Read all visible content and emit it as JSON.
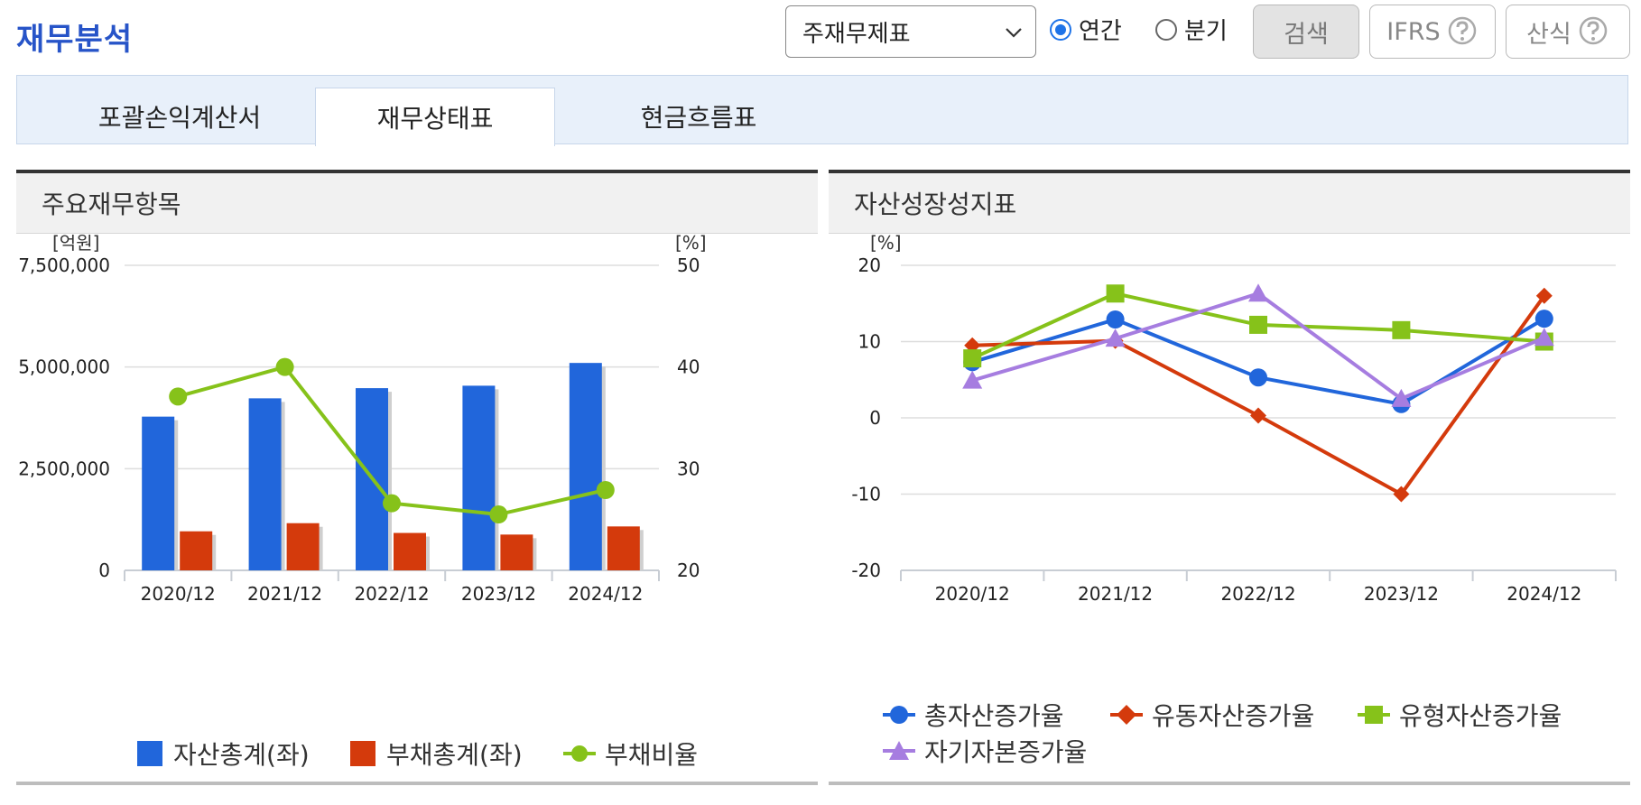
{
  "header": {
    "title": "재무분석",
    "report_select": "주재무제표",
    "radio_annual": "연간",
    "radio_quarter": "분기",
    "search_button": "검색",
    "ifrs_button": "IFRS",
    "formula_button": "산식"
  },
  "tabs": [
    "포괄손익계산서",
    "재무상태표",
    "현금흐름표"
  ],
  "left_panel": {
    "title": "주요재무항목",
    "left_unit": "[억원]",
    "right_unit": "[%]",
    "legend": [
      "자산총계(좌)",
      "부채총계(좌)",
      "부채비율"
    ]
  },
  "right_panel": {
    "title": "자산성장성지표",
    "unit": "[%]",
    "legend": [
      "총자산증가율",
      "유동자산증가율",
      "유형자산증가율",
      "자기자본증가율"
    ]
  },
  "colors": {
    "brand": "#2754c8",
    "asset_bar": "#2166db",
    "liability_bar": "#d43a0c",
    "debt_ratio": "#86c21a",
    "total_asset_growth": "#2166db",
    "current_asset_growth": "#d43a0c",
    "tangible_asset_growth": "#86c21a",
    "equity_growth": "#a67de0"
  },
  "chart_data": [
    {
      "type": "bar",
      "title": "주요재무항목",
      "categories": [
        "2020/12",
        "2021/12",
        "2022/12",
        "2023/12",
        "2024/12"
      ],
      "y_left_ticks": [
        "0",
        "2,500,000",
        "5,000,000",
        "7,500,000"
      ],
      "y_right_ticks": [
        "20",
        "30",
        "40",
        "50"
      ],
      "ylim_left": [
        0,
        7500000
      ],
      "ylim_right": [
        20,
        50
      ],
      "series": [
        {
          "name": "자산총계(좌)",
          "axis": "left",
          "kind": "bar",
          "values": [
            3780000,
            4230000,
            4480000,
            4540000,
            5100000
          ]
        },
        {
          "name": "부채총계(좌)",
          "axis": "left",
          "kind": "bar",
          "values": [
            960000,
            1160000,
            920000,
            880000,
            1080000
          ]
        },
        {
          "name": "부채비율",
          "axis": "right",
          "kind": "line",
          "values": [
            37.1,
            40.0,
            26.6,
            25.5,
            27.9
          ]
        }
      ],
      "grid": true,
      "legend_position": "bottom"
    },
    {
      "type": "line",
      "title": "자산성장성지표",
      "categories": [
        "2020/12",
        "2021/12",
        "2022/12",
        "2023/12",
        "2024/12"
      ],
      "y_ticks": [
        "-20",
        "-10",
        "0",
        "10",
        "20"
      ],
      "ylim": [
        -20,
        20
      ],
      "series": [
        {
          "name": "총자산증가율",
          "marker": "circle",
          "values": [
            7.3,
            12.9,
            5.3,
            1.8,
            13.0
          ]
        },
        {
          "name": "유동자산증가율",
          "marker": "diamond",
          "values": [
            9.5,
            10.1,
            0.3,
            -10.0,
            16.0
          ]
        },
        {
          "name": "유형자산증가율",
          "marker": "square",
          "values": [
            7.8,
            16.3,
            12.2,
            11.5,
            10.0
          ]
        },
        {
          "name": "자기자본증가율",
          "marker": "triangle",
          "values": [
            4.9,
            10.4,
            16.3,
            2.5,
            10.5
          ]
        }
      ],
      "grid": true,
      "legend_position": "bottom"
    }
  ]
}
